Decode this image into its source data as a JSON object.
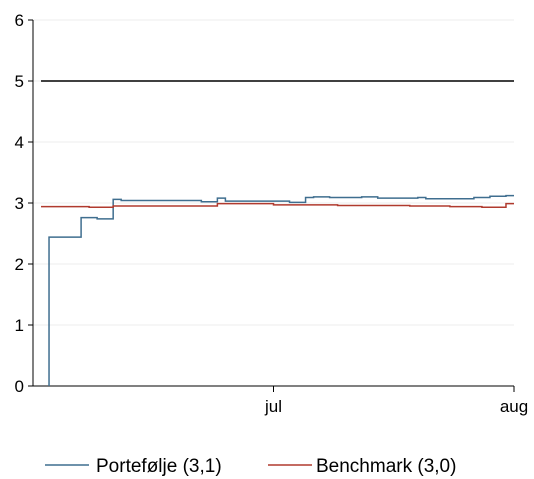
{
  "chart_data": {
    "type": "line",
    "title": "",
    "xlabel": "",
    "ylabel": "",
    "ylim": [
      0,
      6
    ],
    "yticks": [
      0,
      1,
      2,
      3,
      4,
      5,
      6
    ],
    "xlim": [
      "2023-06-01",
      "2023-07-31"
    ],
    "xtick_labels": [
      {
        "date": "2023-07-01",
        "label": "jul"
      },
      {
        "date": "2023-07-31",
        "label": "aug"
      }
    ],
    "grid": "horizontal, light",
    "legend_position": "bottom",
    "reference_line": {
      "y": 5,
      "color": "#000000"
    },
    "series": [
      {
        "name": "Portefølje (3,1)",
        "color": "#3f6e8f",
        "step": true,
        "points": [
          [
            "2023-06-03",
            0
          ],
          [
            "2023-06-03",
            2.44
          ],
          [
            "2023-06-07",
            2.44
          ],
          [
            "2023-06-07",
            2.76
          ],
          [
            "2023-06-09",
            2.76
          ],
          [
            "2023-06-09",
            2.74
          ],
          [
            "2023-06-11",
            2.74
          ],
          [
            "2023-06-11",
            3.06
          ],
          [
            "2023-06-12",
            3.06
          ],
          [
            "2023-06-12",
            3.04
          ],
          [
            "2023-06-22",
            3.04
          ],
          [
            "2023-06-22",
            3.02
          ],
          [
            "2023-06-24",
            3.02
          ],
          [
            "2023-06-24",
            3.08
          ],
          [
            "2023-06-25",
            3.08
          ],
          [
            "2023-06-25",
            3.03
          ],
          [
            "2023-07-03",
            3.03
          ],
          [
            "2023-07-03",
            3.01
          ],
          [
            "2023-07-05",
            3.01
          ],
          [
            "2023-07-05",
            3.09
          ],
          [
            "2023-07-06",
            3.09
          ],
          [
            "2023-07-06",
            3.1
          ],
          [
            "2023-07-08",
            3.1
          ],
          [
            "2023-07-08",
            3.09
          ],
          [
            "2023-07-12",
            3.09
          ],
          [
            "2023-07-12",
            3.1
          ],
          [
            "2023-07-14",
            3.1
          ],
          [
            "2023-07-14",
            3.08
          ],
          [
            "2023-07-19",
            3.08
          ],
          [
            "2023-07-19",
            3.09
          ],
          [
            "2023-07-20",
            3.09
          ],
          [
            "2023-07-20",
            3.07
          ],
          [
            "2023-07-26",
            3.07
          ],
          [
            "2023-07-26",
            3.09
          ],
          [
            "2023-07-28",
            3.09
          ],
          [
            "2023-07-28",
            3.11
          ],
          [
            "2023-07-30",
            3.11
          ],
          [
            "2023-07-30",
            3.12
          ],
          [
            "2023-07-31",
            3.12
          ]
        ]
      },
      {
        "name": "Benchmark (3,0)",
        "color": "#b03a2e",
        "step": true,
        "points": [
          [
            "2023-06-02",
            2.94
          ],
          [
            "2023-06-08",
            2.94
          ],
          [
            "2023-06-08",
            2.93
          ],
          [
            "2023-06-11",
            2.93
          ],
          [
            "2023-06-11",
            2.95
          ],
          [
            "2023-06-24",
            2.95
          ],
          [
            "2023-06-24",
            2.99
          ],
          [
            "2023-07-01",
            2.99
          ],
          [
            "2023-07-01",
            2.97
          ],
          [
            "2023-07-09",
            2.97
          ],
          [
            "2023-07-09",
            2.96
          ],
          [
            "2023-07-18",
            2.96
          ],
          [
            "2023-07-18",
            2.95
          ],
          [
            "2023-07-23",
            2.95
          ],
          [
            "2023-07-23",
            2.94
          ],
          [
            "2023-07-27",
            2.94
          ],
          [
            "2023-07-27",
            2.93
          ],
          [
            "2023-07-30",
            2.93
          ],
          [
            "2023-07-30",
            2.99
          ],
          [
            "2023-07-31",
            2.99
          ]
        ]
      }
    ]
  }
}
